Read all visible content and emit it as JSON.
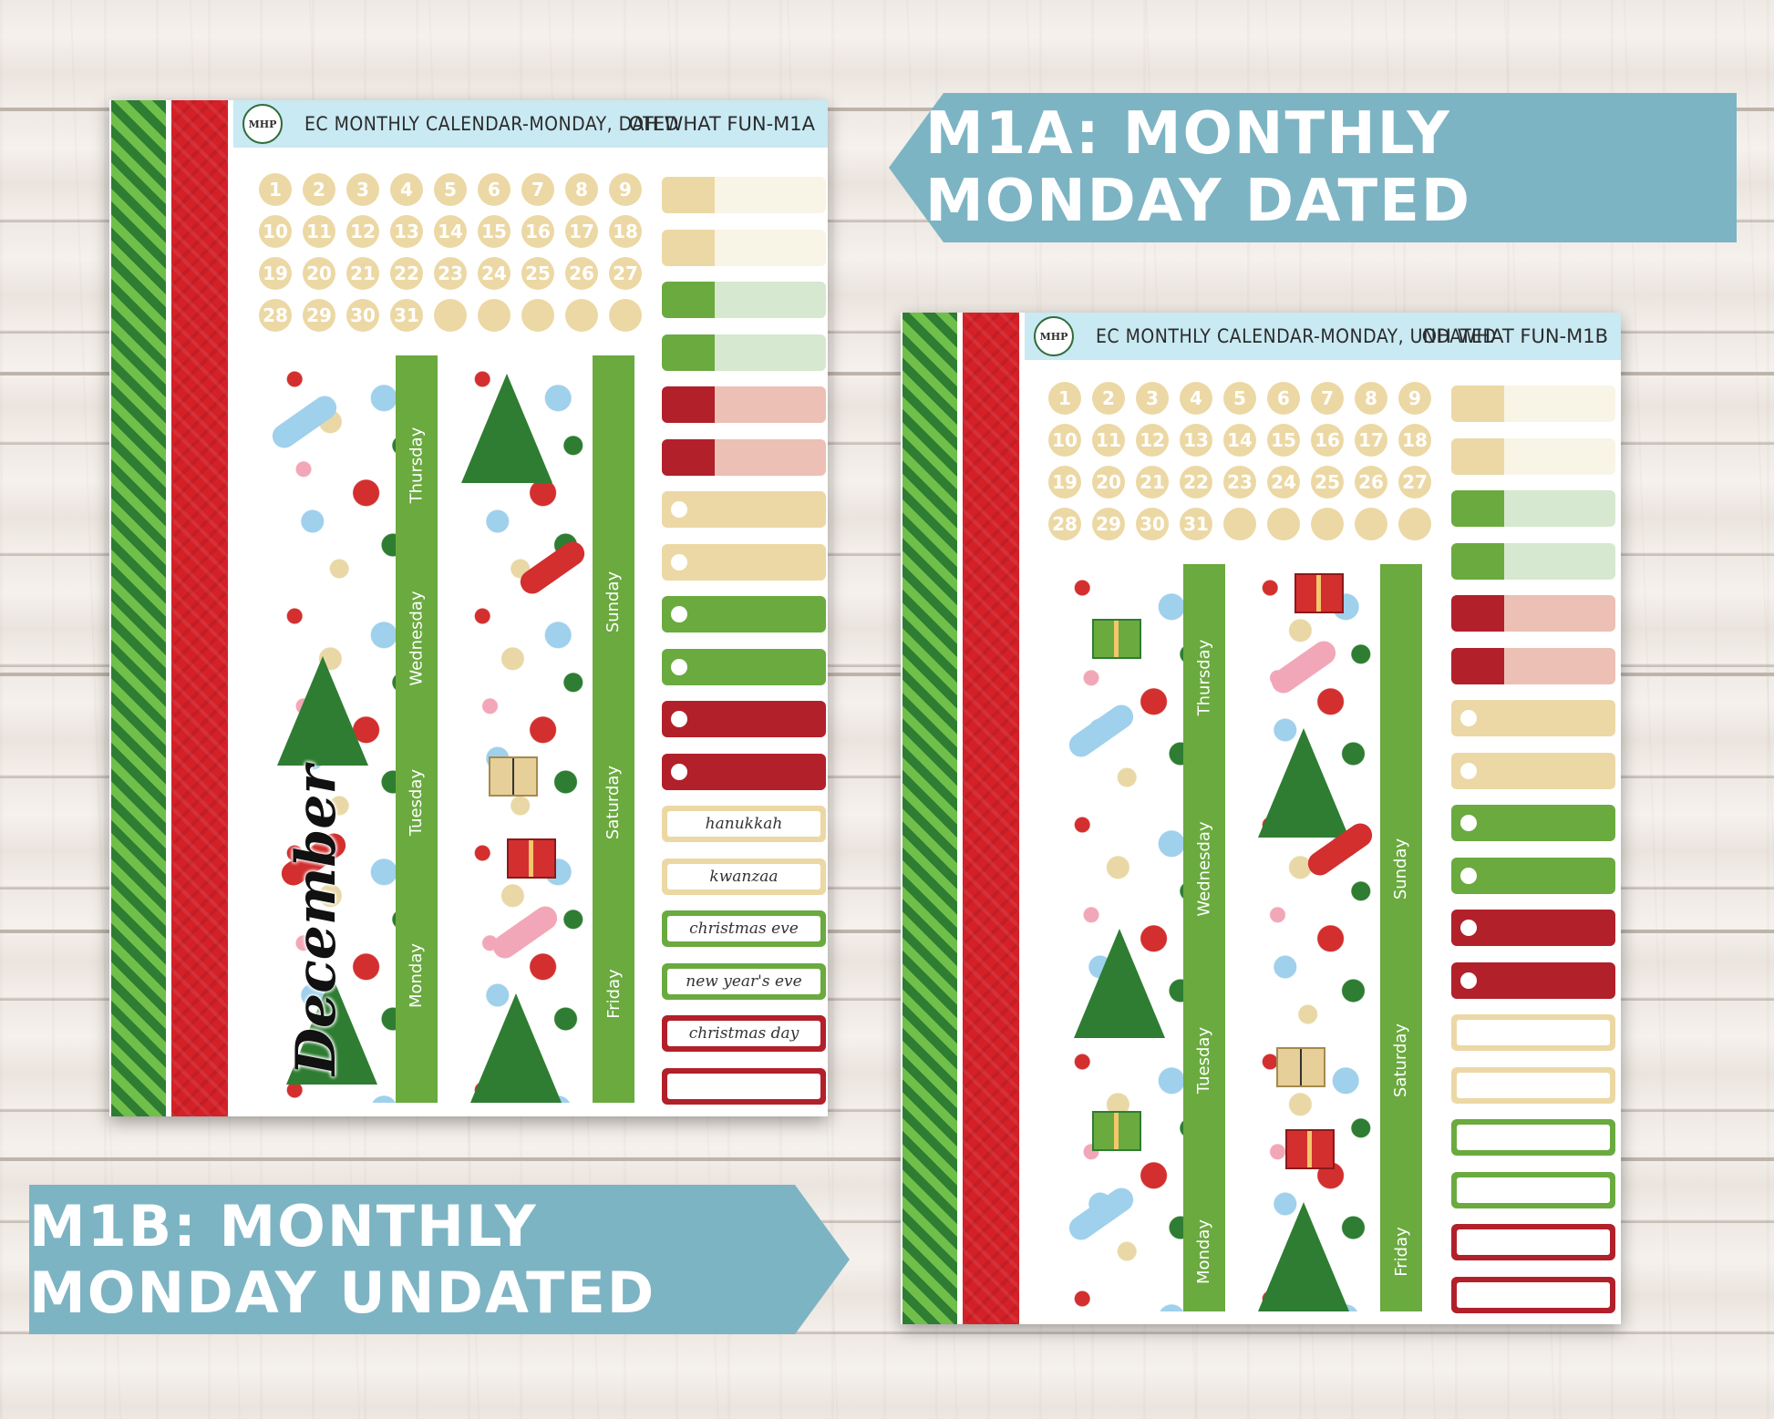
{
  "banners": {
    "m1a": "M1A: MONTHLY MONDAY DATED",
    "m1b": "M1B: MONTHLY MONDAY UNDATED"
  },
  "sheet_a": {
    "logo": "MHP",
    "title": "EC MONTHLY CALENDAR-MONDAY, DATED",
    "code": "OH WHAT FUN-M1A",
    "dates": [
      "1",
      "2",
      "3",
      "4",
      "5",
      "6",
      "7",
      "8",
      "9",
      "10",
      "11",
      "12",
      "13",
      "14",
      "15",
      "16",
      "17",
      "18",
      "19",
      "20",
      "21",
      "22",
      "23",
      "24",
      "25",
      "26",
      "27",
      "28",
      "29",
      "30",
      "31",
      "",
      "",
      "",
      "",
      ""
    ],
    "month_script": "December",
    "days_col1": [
      "Thursday",
      "Wednesday",
      "Tuesday",
      "Monday"
    ],
    "days_col2": [
      "Sunday",
      "Saturday",
      "Friday"
    ],
    "holidays": [
      "hanukkah",
      "kwanzaa",
      "christmas eve",
      "new year's eve",
      "christmas day",
      ""
    ]
  },
  "sheet_b": {
    "logo": "MHP",
    "title": "EC MONTHLY CALENDAR-MONDAY, UNDATED",
    "code": "OH WHAT FUN-M1B",
    "dates": [
      "1",
      "2",
      "3",
      "4",
      "5",
      "6",
      "7",
      "8",
      "9",
      "10",
      "11",
      "12",
      "13",
      "14",
      "15",
      "16",
      "17",
      "18",
      "19",
      "20",
      "21",
      "22",
      "23",
      "24",
      "25",
      "26",
      "27",
      "28",
      "29",
      "30",
      "31",
      "",
      "",
      "",
      "",
      ""
    ],
    "days_col1": [
      "Thursday",
      "Wednesday",
      "Tuesday",
      "Monday"
    ],
    "days_col2": [
      "Sunday",
      "Saturday",
      "Friday"
    ]
  },
  "colors": {
    "tan": "#ecd8a4",
    "tan_light": "#f8f4e6",
    "green": "#6aaa3f",
    "green_light": "#d6e8cf",
    "red": "#b2202a",
    "red_light": "#ecc0b4",
    "banner": "#7db4c3",
    "header": "#c9e9f3"
  }
}
